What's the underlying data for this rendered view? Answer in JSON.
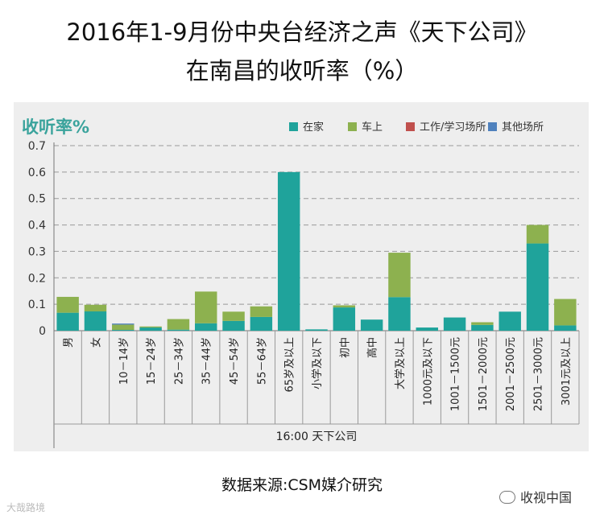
{
  "title_line1": "2016年1-9月份中央台经济之声《天下公司》",
  "title_line2": "在南昌的收听率（%）",
  "source": "数据来源:CSM媒介研究",
  "watermark_left": "大哉路境",
  "watermark_right": "收视中国",
  "chart_data": {
    "type": "bar",
    "stacked": true,
    "ylabel": "收听率%",
    "xlabel": "16:00 天下公司",
    "ylim": [
      0,
      0.7
    ],
    "yticks": [
      "0",
      "0.1",
      "0.2",
      "0.3",
      "0.4",
      "0.5",
      "0.6",
      "0.7"
    ],
    "grid": true,
    "legend_position": "top-right",
    "categories": [
      "男",
      "女",
      "10－14岁",
      "15－24岁",
      "25－34岁",
      "35－44岁",
      "45－54岁",
      "55－64岁",
      "65岁及以上",
      "小学及以下",
      "初中",
      "高中",
      "大学及以上",
      "1000元及以下",
      "1001－1500元",
      "1501－2000元",
      "2001－2500元",
      "2501－3000元",
      "3001元及以上"
    ],
    "series": [
      {
        "name": "在家",
        "color": "#1fa39b",
        "values": [
          0.068,
          0.073,
          0.003,
          0.012,
          0.004,
          0.028,
          0.037,
          0.052,
          0.6,
          0.005,
          0.088,
          0.042,
          0.127,
          0.012,
          0.05,
          0.022,
          0.072,
          0.33,
          0.02
        ]
      },
      {
        "name": "车上",
        "color": "#8db14f",
        "values": [
          0.06,
          0.025,
          0.02,
          0.004,
          0.04,
          0.12,
          0.035,
          0.04,
          0,
          0,
          0.008,
          0,
          0.168,
          0,
          0,
          0.01,
          0,
          0.07,
          0.1
        ]
      },
      {
        "name": "工作/学习场所",
        "color": "#c0504d",
        "values": [
          0,
          0,
          0,
          0,
          0,
          0,
          0,
          0,
          0,
          0,
          0,
          0,
          0,
          0,
          0,
          0,
          0,
          0,
          0
        ]
      },
      {
        "name": "其他场所",
        "color": "#4f81bd",
        "values": [
          0,
          0,
          0.004,
          0,
          0,
          0,
          0,
          0,
          0,
          0,
          0,
          0,
          0,
          0,
          0,
          0,
          0,
          0,
          0
        ]
      }
    ]
  }
}
